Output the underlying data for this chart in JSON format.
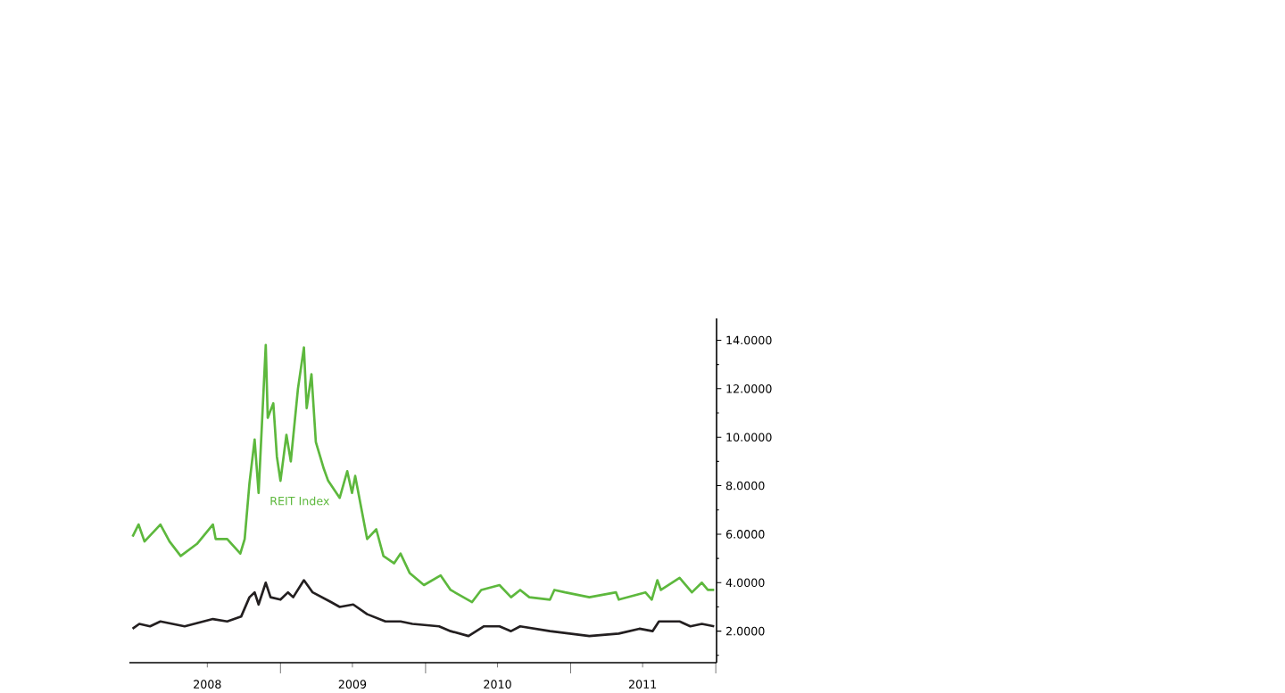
{
  "chart_data": {
    "type": "line",
    "xlim": [
      "2007-12-18",
      "2012-01-03"
    ],
    "ylim": [
      0.7,
      14.9
    ],
    "xticks": [
      {
        "value": "2008-07-01",
        "label": "2008"
      },
      {
        "value": "2009-07-01",
        "label": "2009"
      },
      {
        "value": "2010-07-01",
        "label": "2010"
      },
      {
        "value": "2011-07-01",
        "label": "2011"
      },
      {
        "value": "2009-01-01",
        "label": null
      },
      {
        "value": "2010-01-01",
        "label": null
      },
      {
        "value": "2011-01-01",
        "label": null
      },
      {
        "value": "2012-01-01",
        "label": null
      }
    ],
    "yticks": [
      {
        "value": 2,
        "label": "2.0000"
      },
      {
        "value": 4,
        "label": "4.0000"
      },
      {
        "value": 6,
        "label": "6.0000"
      },
      {
        "value": 8,
        "label": "8.0000"
      },
      {
        "value": 10,
        "label": "10.0000"
      },
      {
        "value": 12,
        "label": "12.0000"
      },
      {
        "value": 14,
        "label": "14.0000"
      },
      {
        "value": 1,
        "label": null
      },
      {
        "value": 3,
        "label": null
      },
      {
        "value": 5,
        "label": null
      },
      {
        "value": 7,
        "label": null
      },
      {
        "value": 9,
        "label": null
      },
      {
        "value": 11,
        "label": null
      },
      {
        "value": 13,
        "label": null
      }
    ],
    "series": [
      {
        "name": "REIT Index",
        "color": "#5db83d",
        "x": [
          "2007-12-26",
          "2008-01-10",
          "2008-01-25",
          "2008-03-05",
          "2008-03-28",
          "2008-04-25",
          "2008-06-05",
          "2008-07-15",
          "2008-07-22",
          "2008-08-20",
          "2008-09-22",
          "2008-10-03",
          "2008-10-15",
          "2008-10-28",
          "2008-11-07",
          "2008-11-25",
          "2008-11-30",
          "2008-12-14",
          "2008-12-23",
          "2009-01-01",
          "2009-01-16",
          "2009-01-27",
          "2009-02-14",
          "2009-03-01",
          "2009-03-08",
          "2009-03-20",
          "2009-03-31",
          "2009-04-20",
          "2009-05-01",
          "2009-05-30",
          "2009-06-18",
          "2009-06-30",
          "2009-07-08",
          "2009-08-07",
          "2009-08-30",
          "2009-09-17",
          "2009-10-14",
          "2009-10-30",
          "2009-11-22",
          "2009-12-28",
          "2010-02-08",
          "2010-03-05",
          "2010-04-28",
          "2010-05-21",
          "2010-07-06",
          "2010-08-04",
          "2010-08-27",
          "2010-09-19",
          "2010-11-10",
          "2010-11-21",
          "2010-12-18",
          "2011-02-17",
          "2011-04-25",
          "2011-05-02",
          "2011-07-08",
          "2011-07-24",
          "2011-08-07",
          "2011-08-16",
          "2011-10-02",
          "2011-11-02",
          "2011-11-27",
          "2011-12-12",
          "2011-12-28"
        ],
        "values": [
          5.9,
          6.4,
          5.7,
          6.4,
          5.7,
          5.1,
          5.6,
          6.4,
          5.8,
          5.8,
          5.2,
          5.8,
          8.1,
          9.9,
          7.7,
          13.8,
          10.8,
          11.4,
          9.2,
          8.2,
          10.1,
          9.0,
          12.0,
          13.7,
          11.2,
          12.6,
          9.8,
          8.7,
          8.2,
          7.5,
          8.6,
          7.7,
          8.4,
          5.8,
          6.2,
          5.1,
          4.8,
          5.2,
          4.4,
          3.9,
          4.3,
          3.7,
          3.2,
          3.7,
          3.9,
          3.4,
          3.7,
          3.4,
          3.3,
          3.7,
          3.6,
          3.4,
          3.6,
          3.3,
          3.6,
          3.3,
          4.1,
          3.7,
          4.2,
          3.6,
          4.0,
          3.7,
          3.7
        ]
      },
      {
        "color": "#231f20",
        "x": [
          "2007-12-26",
          "2008-01-12",
          "2008-02-08",
          "2008-03-05",
          "2008-05-05",
          "2008-07-15",
          "2008-08-20",
          "2008-09-24",
          "2008-10-15",
          "2008-10-28",
          "2008-11-07",
          "2008-11-25",
          "2008-12-07",
          "2009-01-01",
          "2009-01-20",
          "2009-02-02",
          "2009-03-01",
          "2009-03-23",
          "2009-05-08",
          "2009-05-30",
          "2009-07-03",
          "2009-08-07",
          "2009-09-22",
          "2009-10-30",
          "2009-11-29",
          "2010-02-04",
          "2010-03-05",
          "2010-04-19",
          "2010-05-28",
          "2010-07-06",
          "2010-08-04",
          "2010-08-27",
          "2010-11-10",
          "2011-02-17",
          "2011-05-02",
          "2011-06-23",
          "2011-07-26",
          "2011-08-11",
          "2011-10-02",
          "2011-10-29",
          "2011-11-27",
          "2011-12-28"
        ],
        "values": [
          2.1,
          2.3,
          2.2,
          2.4,
          2.2,
          2.5,
          2.4,
          2.6,
          3.4,
          3.6,
          3.1,
          4.0,
          3.4,
          3.3,
          3.6,
          3.4,
          4.1,
          3.6,
          3.2,
          3.0,
          3.1,
          2.7,
          2.4,
          2.4,
          2.3,
          2.2,
          2.0,
          1.8,
          2.2,
          2.2,
          2.0,
          2.2,
          2.0,
          1.8,
          1.9,
          2.1,
          2.0,
          2.4,
          2.4,
          2.2,
          2.3,
          2.2
        ]
      }
    ]
  }
}
